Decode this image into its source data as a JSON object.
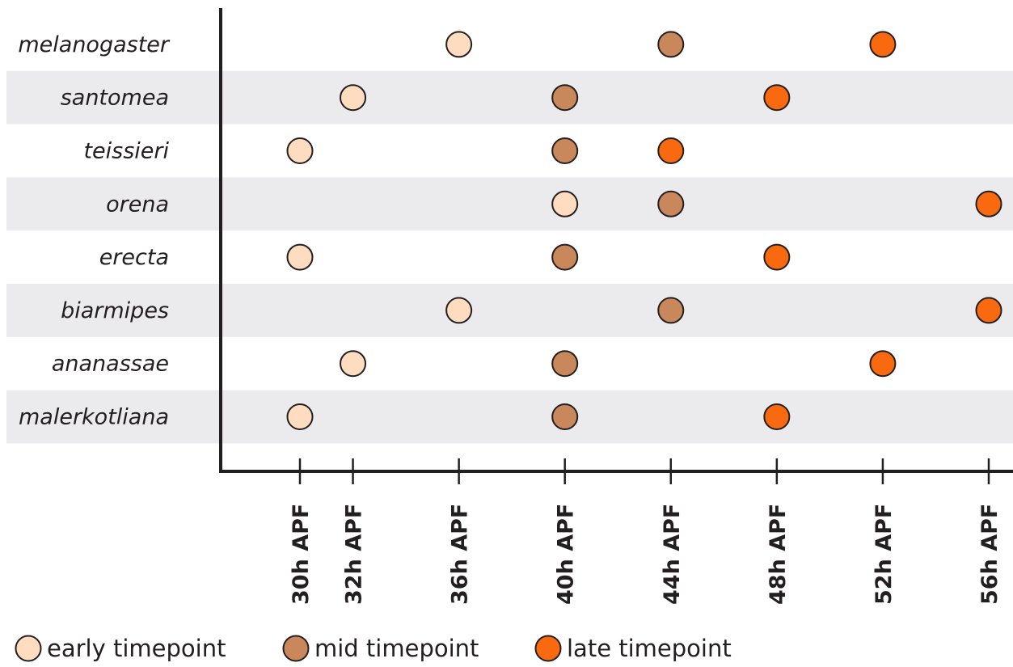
{
  "chart_data": {
    "type": "scatter",
    "title": "",
    "xlabel": "",
    "ylabel": "",
    "x_ticks": [
      30,
      32,
      36,
      40,
      44,
      48,
      52,
      56
    ],
    "x_tick_labels": [
      "30h APF",
      "32h APF",
      "36h APF",
      "40h APF",
      "44h APF",
      "48h APF",
      "52h APF",
      "56h APF"
    ],
    "categories": [
      "melanogaster",
      "santomea",
      "teissieri",
      "orena",
      "erecta",
      "biarmipes",
      "ananassae",
      "malerkotliana"
    ],
    "series": [
      {
        "name": "early timepoint",
        "color": "#fddcc0",
        "values": [
          36,
          32,
          30,
          40,
          30,
          36,
          32,
          30
        ]
      },
      {
        "name": "mid timepoint",
        "color": "#c9875c",
        "values": [
          44,
          40,
          40,
          44,
          40,
          44,
          40,
          40
        ]
      },
      {
        "name": "late timepoint",
        "color": "#f96a10",
        "values": [
          52,
          48,
          44,
          56,
          48,
          56,
          52,
          48
        ]
      }
    ],
    "row_shading": "alternate rows shaded light gray",
    "legend_position": "bottom-left",
    "grid": false
  },
  "style": {
    "stripe_color": "#ebebed",
    "axis_color": "#231f20",
    "marker_stroke": "#231f20"
  }
}
